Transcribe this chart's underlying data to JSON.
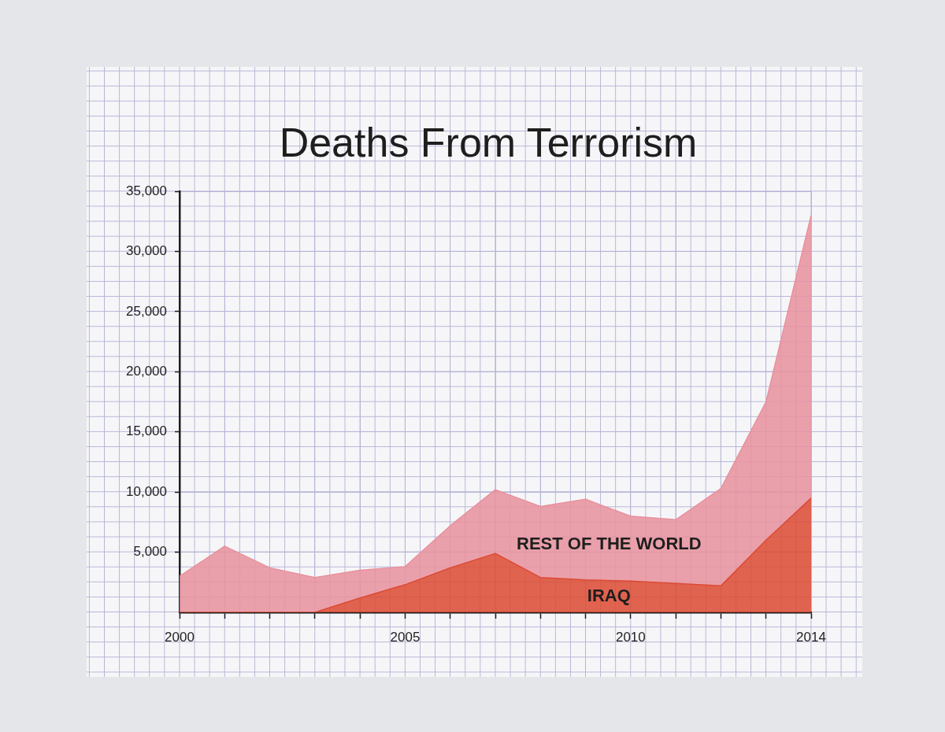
{
  "chart_data": {
    "type": "area",
    "title": "Deaths From Terrorism",
    "x": [
      2000,
      2001,
      2002,
      2003,
      2004,
      2005,
      2006,
      2007,
      2008,
      2009,
      2010,
      2011,
      2012,
      2013,
      2014
    ],
    "xlim": [
      2000,
      2014
    ],
    "xticks": [
      2000,
      {
        "value": 2001,
        "label": null
      },
      {
        "value": 2002,
        "label": null
      },
      {
        "value": 2003,
        "label": null
      },
      {
        "value": 2004,
        "label": null
      },
      2005,
      {
        "value": 2006,
        "label": null
      },
      {
        "value": 2007,
        "label": null
      },
      {
        "value": 2008,
        "label": null
      },
      {
        "value": 2009,
        "label": null
      },
      2010,
      {
        "value": 2011,
        "label": null
      },
      {
        "value": 2012,
        "label": null
      },
      {
        "value": 2013,
        "label": null
      },
      2014
    ],
    "ylim": [
      0,
      35000
    ],
    "yticks": [
      {
        "value": 5000,
        "label": "5,000"
      },
      {
        "value": 10000,
        "label": "10,000"
      },
      {
        "value": 15000,
        "label": "15,000"
      },
      {
        "value": 20000,
        "label": "20,000"
      },
      {
        "value": 25000,
        "label": "25,000"
      },
      {
        "value": 30000,
        "label": "30,000"
      },
      {
        "value": 35000,
        "label": "35,000"
      }
    ],
    "stacked": true,
    "grid": true,
    "marker": "none",
    "series": [
      {
        "name": "IRAQ",
        "color": "#dc4a33",
        "values": [
          0,
          0,
          0,
          0,
          1200,
          2300,
          3700,
          4900,
          2900,
          2700,
          2600,
          2400,
          2200,
          6000,
          9500
        ]
      },
      {
        "name": "REST OF THE WORLD",
        "color": "#e8919d",
        "values": [
          3000,
          5500,
          3700,
          2900,
          2300,
          1500,
          3500,
          5300,
          5900,
          6700,
          5400,
          5300,
          8100,
          11500,
          23500
        ]
      }
    ]
  }
}
